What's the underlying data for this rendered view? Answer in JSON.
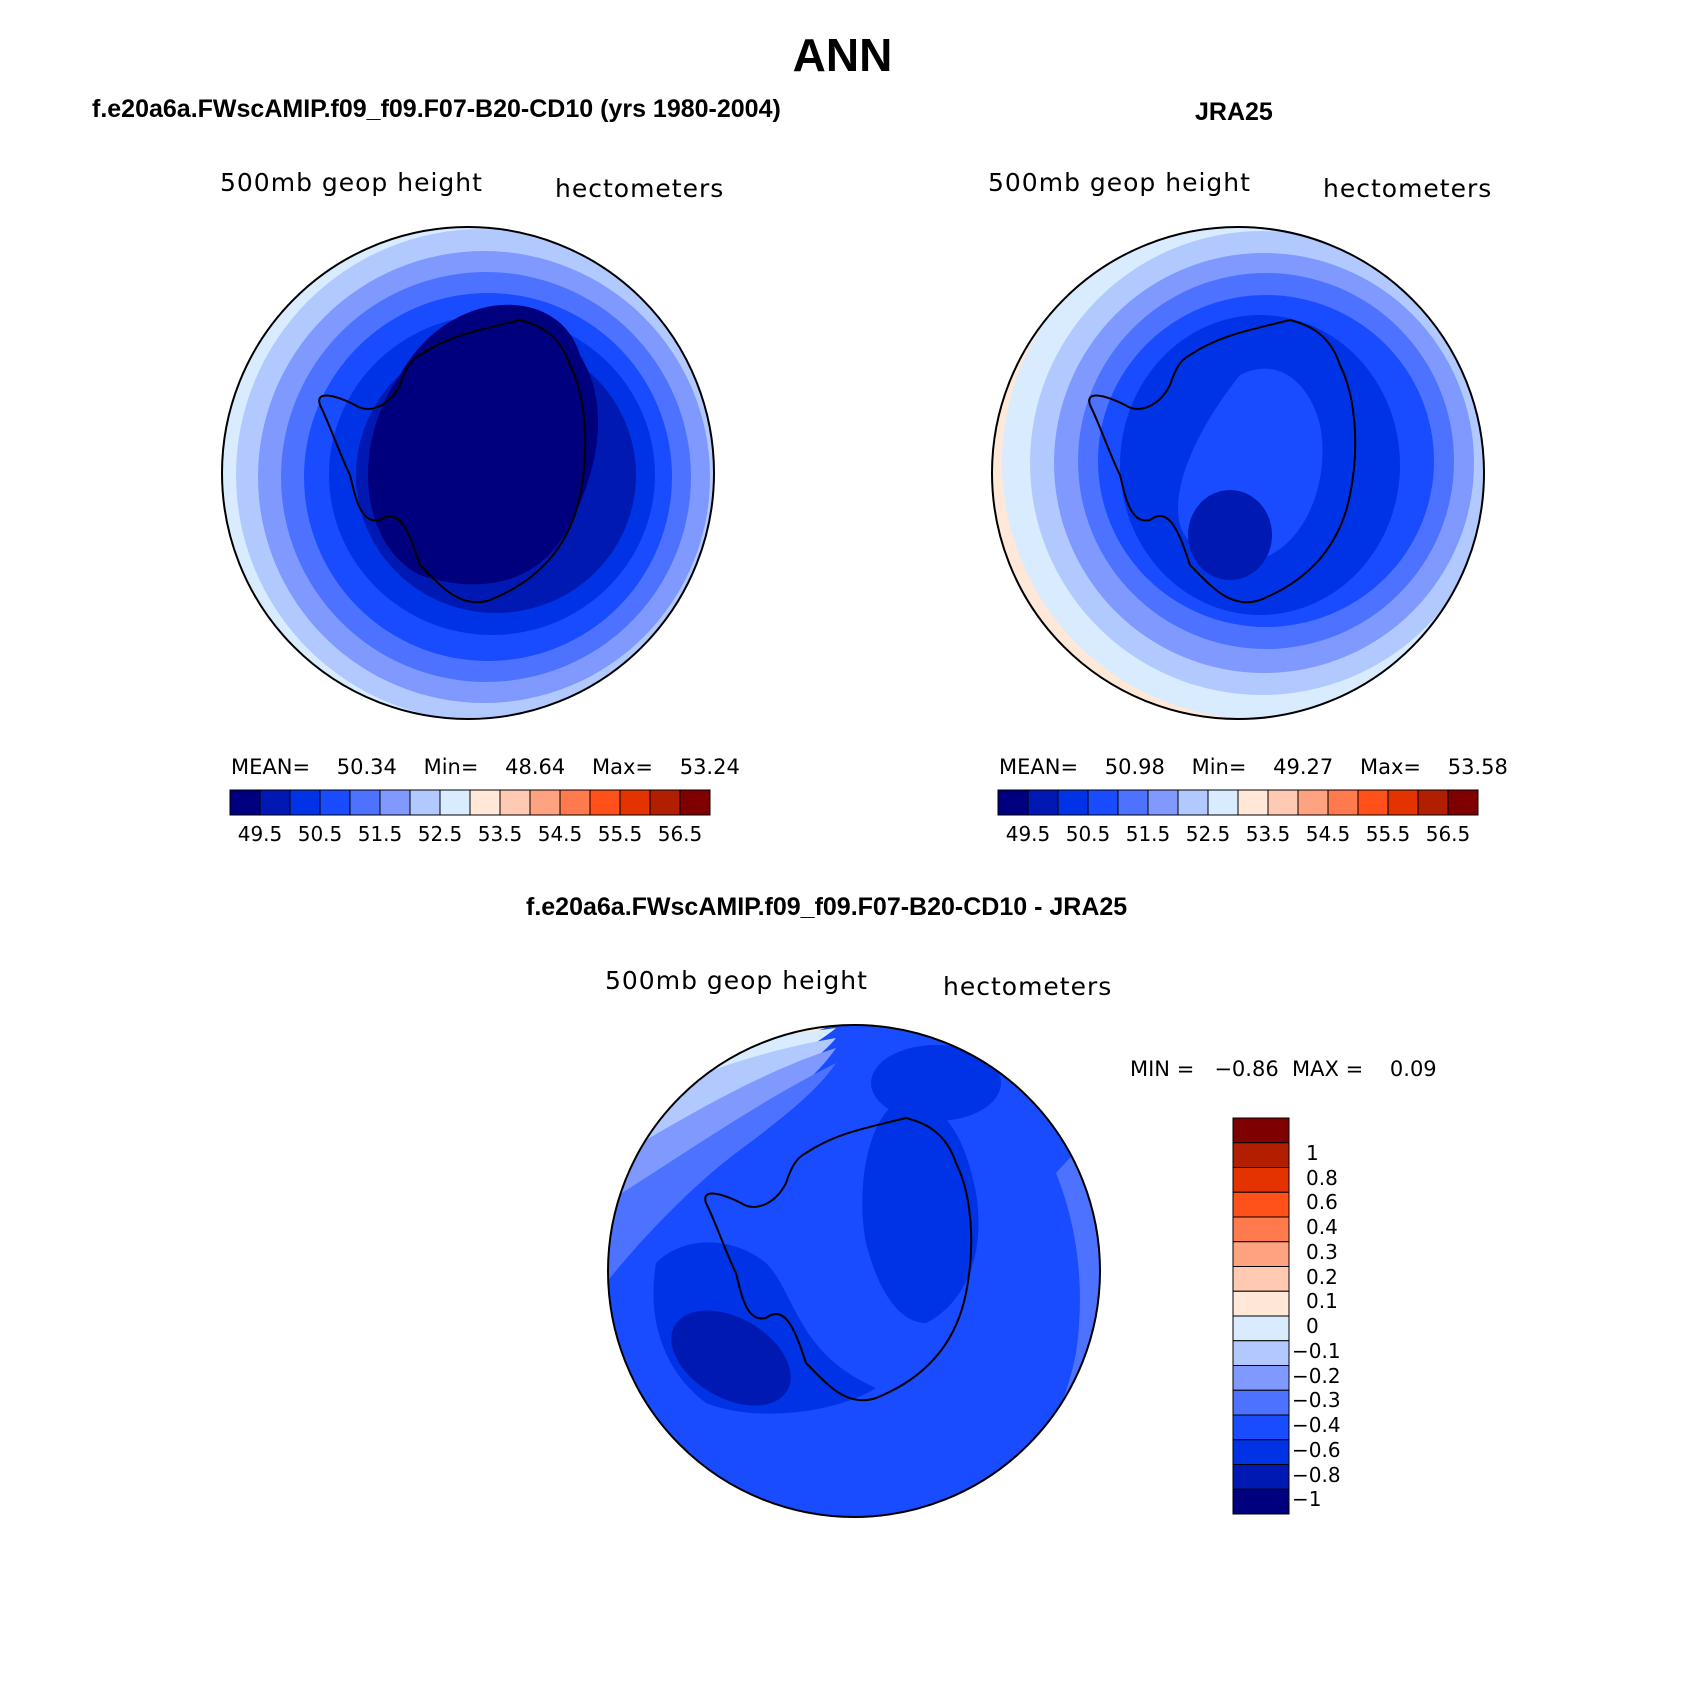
{
  "title": "ANN",
  "panels": [
    {
      "heading": "f.e20a6a.FWscAMIP.f09_f09.F07-B20-CD10 (yrs 1980-2004)",
      "variable": "500mb geop height",
      "units": "hectometers",
      "stats": {
        "mean_label": "MEAN=",
        "mean": "50.34",
        "min_label": "Min=",
        "min": "48.64",
        "max_label": "Max=",
        "max": "53.24"
      }
    },
    {
      "heading": "JRA25",
      "variable": "500mb geop height",
      "units": "hectometers",
      "stats": {
        "mean_label": "MEAN=",
        "mean": "50.98",
        "min_label": "Min=",
        "min": "49.27",
        "max_label": "Max=",
        "max": "53.58"
      }
    },
    {
      "heading": "f.e20a6a.FWscAMIP.f09_f09.F07-B20-CD10 - JRA25",
      "variable": "500mb geop height",
      "units": "hectometers",
      "stats": {
        "min_label": "MIN =",
        "min": "−0.86",
        "max_label": "MAX =",
        "max": "0.09"
      }
    }
  ],
  "horizontal_colorbar": {
    "colors": [
      "#00007f",
      "#0019b2",
      "#0033e5",
      "#194cff",
      "#4c72ff",
      "#7f99ff",
      "#b2c9ff",
      "#d8ebff",
      "#ffe8d8",
      "#ffc9b2",
      "#ffa27f",
      "#ff7a4c",
      "#ff5119",
      "#e53300",
      "#b21f00",
      "#7f0000"
    ],
    "labels": [
      "49.5",
      "50.5",
      "51.5",
      "52.5",
      "53.5",
      "54.5",
      "55.5",
      "56.5"
    ]
  },
  "vertical_colorbar": {
    "colors": [
      "#7f0000",
      "#b21f00",
      "#e53300",
      "#ff5119",
      "#ff7a4c",
      "#ffa27f",
      "#ffc9b2",
      "#ffe8d8",
      "#d8ebff",
      "#b2c9ff",
      "#7f99ff",
      "#4c72ff",
      "#194cff",
      "#0033e5",
      "#0019b2",
      "#00007f"
    ],
    "labels": [
      "1",
      "0.8",
      "0.6",
      "0.4",
      "0.3",
      "0.2",
      "0.1",
      "0",
      "−0.1",
      "−0.2",
      "−0.3",
      "−0.4",
      "−0.6",
      "−0.8",
      "−1"
    ]
  }
}
